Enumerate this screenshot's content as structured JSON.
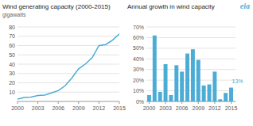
{
  "chart_data": [
    {
      "type": "line",
      "title": "Wind generating capacity (2000-2015)",
      "y_label": "gigawatts",
      "x": [
        2000,
        2001,
        2002,
        2003,
        2004,
        2005,
        2006,
        2007,
        2008,
        2009,
        2010,
        2011,
        2012,
        2013,
        2014,
        2015
      ],
      "values": [
        2.5,
        4.3,
        4.7,
        6.4,
        6.8,
        9.1,
        11.6,
        16.8,
        25.1,
        35.0,
        40.2,
        46.9,
        60.0,
        61.1,
        65.9,
        72.5
      ],
      "color": "#4bacd6",
      "xlim": [
        2000,
        2015
      ],
      "xticks": [
        2000,
        2003,
        2006,
        2009,
        2012,
        2015
      ],
      "ylim": [
        0,
        80
      ],
      "yticks": [
        10,
        20,
        30,
        40,
        50,
        60,
        70,
        80
      ],
      "grid": true
    },
    {
      "type": "bar",
      "title": "Annual growth in wind capacity",
      "x": [
        2000,
        2001,
        2002,
        2003,
        2004,
        2005,
        2006,
        2007,
        2008,
        2009,
        2010,
        2011,
        2012,
        2013,
        2014,
        2015
      ],
      "values": [
        0.06,
        0.62,
        0.09,
        0.35,
        0.06,
        0.34,
        0.28,
        0.45,
        0.49,
        0.39,
        0.15,
        0.16,
        0.28,
        0.02,
        0.08,
        0.13
      ],
      "color": "#4bacd6",
      "xlim": [
        1999.5,
        2015.8
      ],
      "xticks": [
        2000,
        2003,
        2006,
        2009,
        2012,
        2015
      ],
      "ylim": [
        0,
        0.7
      ],
      "yticks": [
        {
          "value": 0,
          "label": "0%"
        },
        {
          "value": 0.1,
          "label": "10%"
        },
        {
          "value": 0.2,
          "label": "20%"
        },
        {
          "value": 0.3,
          "label": "30%"
        },
        {
          "value": 0.4,
          "label": "40%"
        },
        {
          "value": 0.5,
          "label": "50%"
        },
        {
          "value": 0.6,
          "label": "60%"
        },
        {
          "value": 0.7,
          "label": "70%"
        }
      ],
      "annotations": [
        {
          "text": "13%",
          "x": 2015,
          "y": 0.13
        }
      ],
      "grid": true
    }
  ],
  "logo": "eia"
}
